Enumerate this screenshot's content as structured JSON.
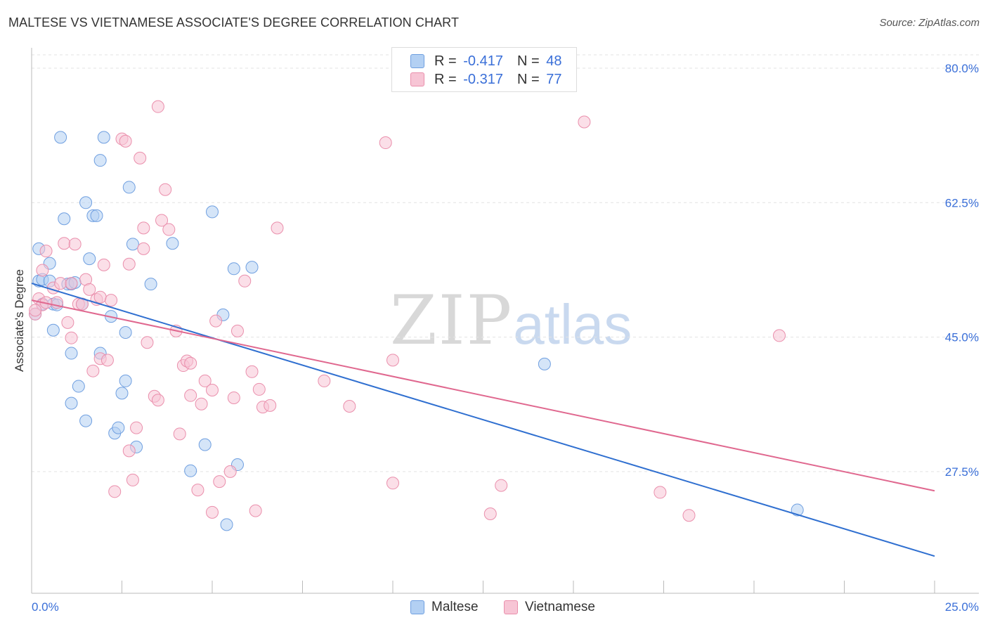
{
  "title": "MALTESE VS VIETNAMESE ASSOCIATE'S DEGREE CORRELATION CHART",
  "source": "Source: ZipAtlas.com",
  "watermark": {
    "zip": "ZIP",
    "atlas": "atlas"
  },
  "legend": {
    "r_label": "R = ",
    "n_label": "N = ",
    "rows": [
      {
        "r": "-0.417",
        "n": "48"
      },
      {
        "r": "-0.317",
        "n": "77"
      }
    ]
  },
  "colors": {
    "maltese_fill": "#b3d0f3",
    "maltese_stroke": "#6f9fe0",
    "maltese_line": "#2f6fd0",
    "vietnamese_fill": "#f7c5d5",
    "vietnamese_stroke": "#ea8fac",
    "vietnamese_line": "#e0688f",
    "tick_label": "#3a6fd8",
    "grid": "#e3e3e3"
  },
  "chart_data": {
    "type": "scatter",
    "title": "MALTESE VS VIETNAMESE ASSOCIATE'S DEGREE CORRELATION CHART",
    "xlabel": "",
    "ylabel": "Associate's Degree",
    "xlim": [
      0,
      25
    ],
    "ylim": [
      10,
      82.5
    ],
    "x_tick_labels": [
      "0.0%",
      "25.0%"
    ],
    "y_ticks": [
      27.5,
      45.0,
      62.5,
      80.0
    ],
    "y_tick_labels": [
      "27.5%",
      "45.0%",
      "62.5%",
      "80.0%"
    ],
    "grid": true,
    "legend_position": "top-center",
    "series": [
      {
        "name": "Maltese",
        "color": "#6f9fe0",
        "points": [
          [
            0.2,
            56.5
          ],
          [
            0.2,
            52.3
          ],
          [
            0.3,
            52.5
          ],
          [
            0.3,
            49.3
          ],
          [
            0.5,
            54.6
          ],
          [
            0.5,
            52.3
          ],
          [
            0.6,
            49.3
          ],
          [
            0.6,
            45.9
          ],
          [
            0.7,
            49.2
          ],
          [
            0.8,
            71.0
          ],
          [
            0.9,
            60.4
          ],
          [
            1.0,
            51.9
          ],
          [
            1.1,
            51.9
          ],
          [
            1.1,
            42.9
          ],
          [
            1.2,
            52.1
          ],
          [
            1.3,
            38.6
          ],
          [
            1.4,
            49.3
          ],
          [
            1.5,
            62.5
          ],
          [
            1.5,
            34.1
          ],
          [
            1.1,
            36.4
          ],
          [
            1.6,
            55.2
          ],
          [
            1.7,
            60.8
          ],
          [
            1.8,
            60.8
          ],
          [
            1.9,
            68.0
          ],
          [
            1.9,
            42.9
          ],
          [
            2.0,
            71.0
          ],
          [
            2.2,
            47.7
          ],
          [
            2.3,
            32.5
          ],
          [
            2.4,
            33.2
          ],
          [
            2.5,
            37.7
          ],
          [
            2.6,
            45.6
          ],
          [
            2.6,
            39.3
          ],
          [
            2.7,
            64.5
          ],
          [
            2.8,
            57.1
          ],
          [
            2.9,
            30.7
          ],
          [
            3.3,
            51.9
          ],
          [
            3.9,
            57.2
          ],
          [
            4.4,
            27.6
          ],
          [
            4.8,
            31.0
          ],
          [
            5.0,
            61.3
          ],
          [
            5.3,
            47.9
          ],
          [
            5.4,
            20.6
          ],
          [
            5.6,
            53.9
          ],
          [
            5.7,
            28.4
          ],
          [
            6.1,
            54.1
          ],
          [
            14.2,
            41.5
          ],
          [
            21.2,
            22.5
          ],
          [
            0.1,
            48.0
          ]
        ],
        "trendline": {
          "x": [
            0,
            25
          ],
          "y": [
            52.0,
            16.5
          ]
        }
      },
      {
        "name": "Vietnamese",
        "color": "#ea8fac",
        "points": [
          [
            0.1,
            48.0
          ],
          [
            0.2,
            50.0
          ],
          [
            0.3,
            49.2
          ],
          [
            0.3,
            53.7
          ],
          [
            0.4,
            56.2
          ],
          [
            0.6,
            51.4
          ],
          [
            0.7,
            49.5
          ],
          [
            0.8,
            52.0
          ],
          [
            0.9,
            57.2
          ],
          [
            1.0,
            46.9
          ],
          [
            1.1,
            52.0
          ],
          [
            1.1,
            44.9
          ],
          [
            1.2,
            57.1
          ],
          [
            1.3,
            49.3
          ],
          [
            1.4,
            49.3
          ],
          [
            1.5,
            52.5
          ],
          [
            1.6,
            51.2
          ],
          [
            1.7,
            40.6
          ],
          [
            1.8,
            49.9
          ],
          [
            1.9,
            42.2
          ],
          [
            1.9,
            50.2
          ],
          [
            2.0,
            54.4
          ],
          [
            2.1,
            42.0
          ],
          [
            2.2,
            49.8
          ],
          [
            2.3,
            24.9
          ],
          [
            2.5,
            70.8
          ],
          [
            2.6,
            70.5
          ],
          [
            2.7,
            30.2
          ],
          [
            2.7,
            54.5
          ],
          [
            2.8,
            26.4
          ],
          [
            2.9,
            33.2
          ],
          [
            3.0,
            68.3
          ],
          [
            3.1,
            59.2
          ],
          [
            3.1,
            56.5
          ],
          [
            3.2,
            44.3
          ],
          [
            3.4,
            37.3
          ],
          [
            3.5,
            36.8
          ],
          [
            3.5,
            75.0
          ],
          [
            3.6,
            60.2
          ],
          [
            3.7,
            64.2
          ],
          [
            3.8,
            59.0
          ],
          [
            4.0,
            45.8
          ],
          [
            4.1,
            32.4
          ],
          [
            4.2,
            41.3
          ],
          [
            4.3,
            41.9
          ],
          [
            4.4,
            37.4
          ],
          [
            4.4,
            41.6
          ],
          [
            4.6,
            25.1
          ],
          [
            4.7,
            36.3
          ],
          [
            4.8,
            39.3
          ],
          [
            5.0,
            22.2
          ],
          [
            5.0,
            38.1
          ],
          [
            5.1,
            47.1
          ],
          [
            5.2,
            26.2
          ],
          [
            5.5,
            27.5
          ],
          [
            5.6,
            37.1
          ],
          [
            5.7,
            45.8
          ],
          [
            5.9,
            52.3
          ],
          [
            6.1,
            40.5
          ],
          [
            6.2,
            22.4
          ],
          [
            6.3,
            38.2
          ],
          [
            6.4,
            35.9
          ],
          [
            6.6,
            36.1
          ],
          [
            6.8,
            59.2
          ],
          [
            8.1,
            39.3
          ],
          [
            8.8,
            36.0
          ],
          [
            9.8,
            70.3
          ],
          [
            10.0,
            42.0
          ],
          [
            10.0,
            26.0
          ],
          [
            12.7,
            22.0
          ],
          [
            13.0,
            25.7
          ],
          [
            15.3,
            73.0
          ],
          [
            17.4,
            24.8
          ],
          [
            18.2,
            21.8
          ],
          [
            20.7,
            45.2
          ],
          [
            0.1,
            48.5
          ],
          [
            0.4,
            49.5
          ]
        ],
        "trendline": {
          "x": [
            0,
            25
          ],
          "y": [
            49.8,
            25.0
          ]
        }
      }
    ]
  },
  "bottom_legend": {
    "items": [
      {
        "label": "Maltese"
      },
      {
        "label": "Vietnamese"
      }
    ]
  }
}
